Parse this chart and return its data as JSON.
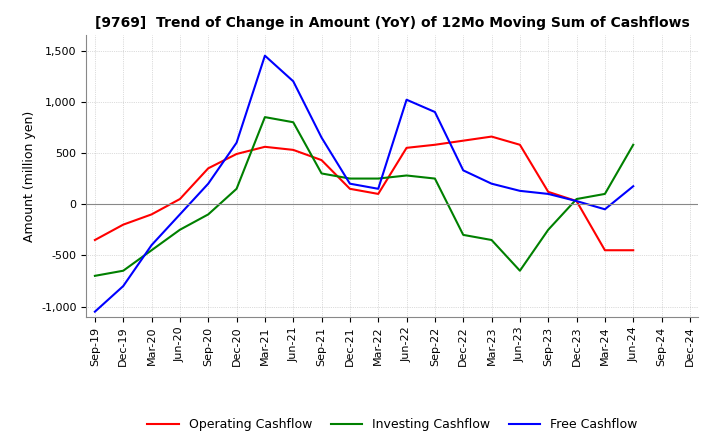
{
  "title": "[9769]  Trend of Change in Amount (YoY) of 12Mo Moving Sum of Cashflows",
  "ylabel": "Amount (million yen)",
  "x_labels": [
    "Sep-19",
    "Dec-19",
    "Mar-20",
    "Jun-20",
    "Sep-20",
    "Dec-20",
    "Mar-21",
    "Jun-21",
    "Sep-21",
    "Dec-21",
    "Mar-22",
    "Jun-22",
    "Sep-22",
    "Dec-22",
    "Mar-23",
    "Jun-23",
    "Sep-23",
    "Dec-23",
    "Mar-24",
    "Jun-24",
    "Sep-24",
    "Dec-24"
  ],
  "operating": [
    -350,
    -200,
    -100,
    50,
    350,
    490,
    560,
    530,
    430,
    150,
    100,
    550,
    580,
    620,
    660,
    580,
    120,
    30,
    -450,
    -450,
    null,
    null
  ],
  "investing": [
    -700,
    -650,
    -450,
    -250,
    -100,
    150,
    850,
    800,
    300,
    250,
    250,
    280,
    250,
    -300,
    -350,
    -650,
    -250,
    50,
    100,
    580,
    null,
    null
  ],
  "free": [
    -1050,
    -800,
    -400,
    -100,
    200,
    600,
    1450,
    1200,
    650,
    200,
    150,
    1020,
    900,
    330,
    200,
    130,
    100,
    30,
    -50,
    175,
    null,
    null
  ],
  "ylim": [
    -1100,
    1650
  ],
  "yticks": [
    -1000,
    -500,
    0,
    500,
    1000,
    1500
  ],
  "operating_color": "#ff0000",
  "investing_color": "#008000",
  "free_color": "#0000ff",
  "grid_color": "#aaaaaa",
  "background_color": "#ffffff",
  "title_fontsize": 10,
  "axis_fontsize": 8,
  "ylabel_fontsize": 9
}
